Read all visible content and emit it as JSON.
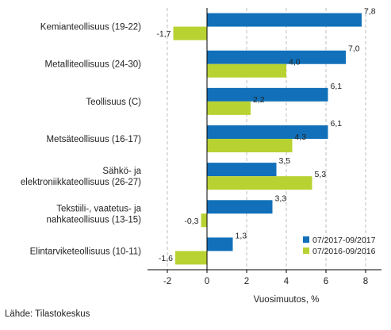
{
  "chart_data": {
    "type": "bar",
    "orientation": "horizontal",
    "title": "",
    "categories": [
      [
        "Kemianteollisuus (19-22)"
      ],
      [
        "Metalliteollisuus (24-30)"
      ],
      [
        "Teollisuus (C)"
      ],
      [
        "Metsäteollisuus (16-17)"
      ],
      [
        "Sähkö- ja",
        "elektroniikkateollisuus (26-27)"
      ],
      [
        "Tekstiili-, vaatetus- ja",
        "nahkateollisuus (13-15)"
      ],
      [
        "Elintarviketeollisuus (10-11)"
      ]
    ],
    "series": [
      {
        "name": "07/2017-09/2017",
        "color": "#1170b9",
        "values": [
          7.8,
          7.0,
          6.1,
          6.1,
          3.5,
          3.3,
          1.3
        ],
        "labels": [
          "7,8",
          "7,0",
          "6,1",
          "6,1",
          "3,5",
          "3,3",
          "1,3"
        ]
      },
      {
        "name": "07/2016-09/2016",
        "color": "#b8d232",
        "values": [
          -1.7,
          4.0,
          2.2,
          4.3,
          5.3,
          -0.3,
          -1.6
        ],
        "labels": [
          "-1,7",
          "4,0",
          "2,2",
          "4,3",
          "5,3",
          "-0,3",
          "-1,6"
        ]
      }
    ],
    "xlabel": "Vuosimuutos, %",
    "xlim": [
      -3.0,
      8.8
    ],
    "xticks": [
      -2,
      0,
      2,
      4,
      6,
      8
    ],
    "xtick_labels": [
      "-2",
      "0",
      "2",
      "4",
      "6",
      "8"
    ],
    "grid": "vertical dashed",
    "legend_position": "bottom-right"
  },
  "source": "Lähde: Tilastokeskus"
}
